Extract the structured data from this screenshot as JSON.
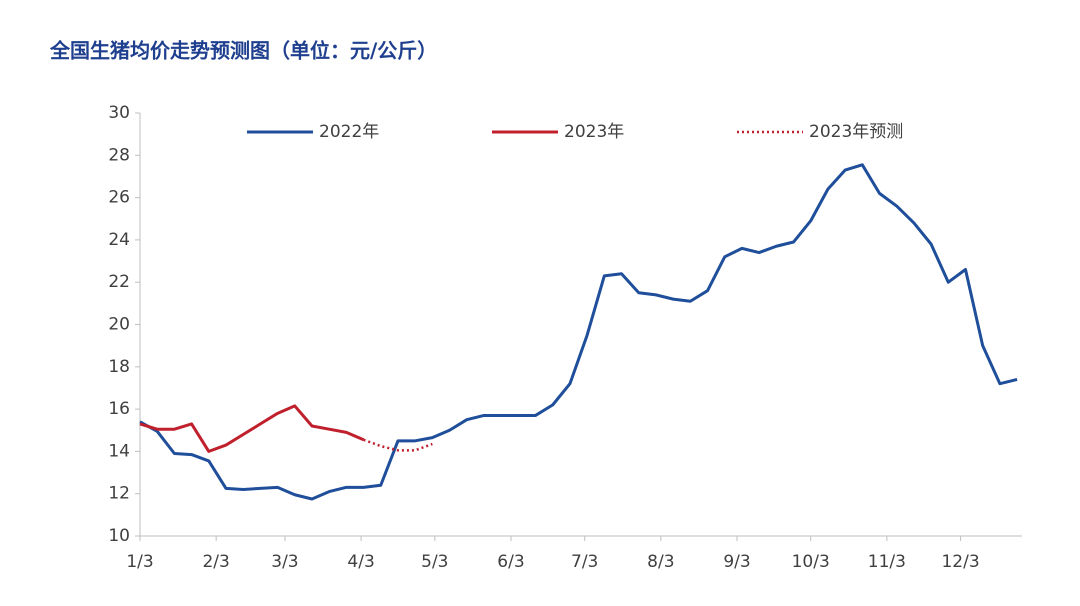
{
  "chart_data": {
    "type": "line",
    "title": "全国生猪均价走势预测图（单位：元/公斤）",
    "xlim": [
      0,
      359
    ],
    "xticks": [
      {
        "value": 0,
        "label": "1/3"
      },
      {
        "value": 31,
        "label": "2/3"
      },
      {
        "value": 59,
        "label": "3/3"
      },
      {
        "value": 90,
        "label": "4/3"
      },
      {
        "value": 120,
        "label": "5/3"
      },
      {
        "value": 151,
        "label": "6/3"
      },
      {
        "value": 181,
        "label": "7/3"
      },
      {
        "value": 212,
        "label": "8/3"
      },
      {
        "value": 243,
        "label": "9/3"
      },
      {
        "value": 273,
        "label": "10/3"
      },
      {
        "value": 304,
        "label": "11/3"
      },
      {
        "value": 334,
        "label": "12/3"
      }
    ],
    "ylim": [
      10,
      30
    ],
    "yticks": [
      10,
      12,
      14,
      16,
      18,
      20,
      22,
      24,
      26,
      28,
      30
    ],
    "grid": false,
    "legend": "top",
    "series": [
      {
        "name": "2022年",
        "color": "#1f4e9a",
        "style": "solid",
        "x": [
          0,
          7,
          14,
          21,
          28,
          35,
          42,
          49,
          56,
          63,
          70,
          77,
          84,
          91,
          98,
          105,
          112,
          119,
          126,
          133,
          140,
          147,
          154,
          161,
          168,
          175,
          182,
          189,
          196,
          203,
          210,
          217,
          224,
          231,
          238,
          245,
          252,
          259,
          266,
          273,
          280,
          287,
          294,
          301,
          308,
          315,
          322,
          329,
          336,
          343,
          350,
          357
        ],
        "values": [
          15.4,
          14.95,
          13.9,
          13.85,
          13.55,
          12.25,
          12.2,
          12.25,
          12.3,
          11.95,
          11.75,
          12.1,
          12.3,
          12.3,
          12.4,
          14.5,
          14.5,
          14.65,
          15.0,
          15.5,
          15.7,
          15.7,
          15.7,
          15.7,
          16.2,
          17.2,
          19.5,
          22.3,
          22.4,
          21.5,
          21.4,
          21.2,
          21.1,
          21.6,
          23.2,
          23.6,
          23.4,
          23.7,
          23.9,
          24.9,
          26.4,
          27.3,
          27.55,
          26.2,
          25.6,
          24.8,
          23.8,
          22.0,
          22.6,
          19.0,
          17.2,
          17.4
        ]
      },
      {
        "name": "2023年",
        "color": "#c0202c",
        "style": "solid",
        "x": [
          0,
          7,
          14,
          21,
          28,
          35,
          42,
          49,
          56,
          63,
          70,
          77,
          84,
          91
        ],
        "values": [
          15.3,
          15.05,
          15.05,
          15.3,
          14.0,
          14.3,
          14.8,
          15.3,
          15.8,
          16.15,
          15.2,
          15.05,
          14.9,
          14.55
        ]
      },
      {
        "name": "2023年预测",
        "color": "#c0202c",
        "style": "dotted",
        "x": [
          91,
          98,
          105,
          112,
          119
        ],
        "values": [
          14.55,
          14.25,
          14.05,
          14.05,
          14.35
        ]
      }
    ]
  }
}
